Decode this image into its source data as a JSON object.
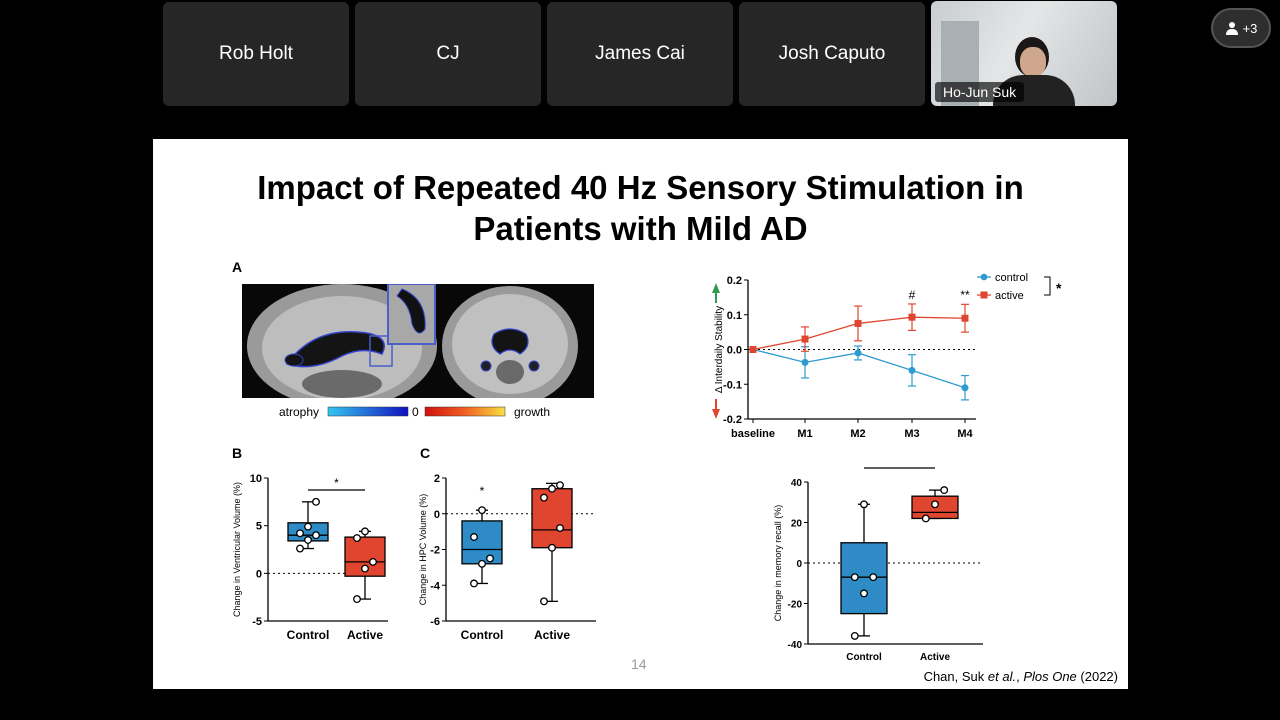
{
  "participants": [
    {
      "name": "Rob Holt"
    },
    {
      "name": "CJ"
    },
    {
      "name": "James Cai"
    },
    {
      "name": "Josh Caputo"
    }
  ],
  "video_participant": {
    "name": "Ho-Jun Suk"
  },
  "participants_button": {
    "label": "+3",
    "icon": "person-icon"
  },
  "slide": {
    "title_line1": "Impact of Repeated 40 Hz Sensory Stimulation in",
    "title_line2": "Patients with Mild AD",
    "page_number": "14",
    "citation_authors": "Chan, Suk ",
    "citation_etal": "et al.",
    "citation_sep": ", ",
    "citation_journal": "Plos One",
    "citation_year": " (2022)",
    "panel_labels": {
      "a": "A",
      "b": "B",
      "c": "C"
    },
    "colorbar": {
      "left": "atrophy",
      "mid": "0",
      "right": "growth"
    }
  },
  "chart_data": [
    {
      "id": "B",
      "type": "box",
      "ylabel": "Change in Ventricular Volume (%)",
      "ylim": [
        -5,
        10
      ],
      "yticks": [
        -5,
        0,
        5,
        10
      ],
      "categories": [
        "Control",
        "Active"
      ],
      "colors": [
        "#2e8bc5",
        "#e0452f"
      ],
      "boxes": [
        {
          "min": 2.6,
          "q1": 3.4,
          "median": 4.0,
          "q3": 5.3,
          "max": 7.5,
          "points": [
            2.6,
            3.5,
            4.0,
            4.2,
            4.9,
            7.5
          ]
        },
        {
          "min": -2.7,
          "q1": -0.3,
          "median": 1.2,
          "q3": 3.8,
          "max": 4.4,
          "points": [
            -2.7,
            0.5,
            1.2,
            3.7,
            4.4
          ]
        }
      ],
      "significance": "*"
    },
    {
      "id": "C",
      "type": "box",
      "ylabel": "Change in HPC Volume (%)",
      "ylim": [
        -6,
        2
      ],
      "yticks": [
        -6,
        -4,
        -2,
        0,
        2
      ],
      "categories": [
        "Control",
        "Active"
      ],
      "colors": [
        "#2e8bc5",
        "#e0452f"
      ],
      "boxes": [
        {
          "min": -3.9,
          "q1": -2.8,
          "median": -2.0,
          "q3": -0.4,
          "max": 0.2,
          "points": [
            -3.9,
            -2.8,
            -2.5,
            -1.3,
            0.2
          ]
        },
        {
          "min": -4.9,
          "q1": -1.9,
          "median": -0.9,
          "q3": 1.4,
          "max": 1.7,
          "points": [
            -4.9,
            -1.9,
            -0.8,
            0.9,
            1.4,
            1.6
          ]
        }
      ],
      "significance": "*"
    },
    {
      "id": "interdaily",
      "type": "line",
      "ylabel": "Δ Interdaily Stability",
      "ylim": [
        -0.2,
        0.2
      ],
      "yticks": [
        -0.2,
        -0.1,
        0.0,
        0.1,
        0.2
      ],
      "categories": [
        "baseline",
        "M1",
        "M2",
        "M3",
        "M4"
      ],
      "series": [
        {
          "name": "control",
          "color": "#2e9bd0",
          "values": [
            0.0,
            -0.037,
            -0.01,
            -0.06,
            -0.11
          ],
          "errors": [
            0,
            0.045,
            0.02,
            0.045,
            0.035
          ]
        },
        {
          "name": "active",
          "color": "#e0452f",
          "values": [
            0.0,
            0.03,
            0.075,
            0.093,
            0.09
          ],
          "errors": [
            0,
            0.035,
            0.05,
            0.038,
            0.04
          ]
        }
      ],
      "annotations": [
        {
          "category": "M3",
          "text": "#"
        },
        {
          "category": "M4",
          "text": "**"
        }
      ],
      "legend_significance": "*",
      "legend": "top-right"
    },
    {
      "id": "memory",
      "type": "box",
      "ylabel": "Change in memory recall (%)",
      "ylim": [
        -40,
        40
      ],
      "yticks": [
        -40,
        -20,
        0,
        20,
        40
      ],
      "categories": [
        "Control",
        "Active"
      ],
      "colors": [
        "#2e8bc5",
        "#e0452f"
      ],
      "boxes": [
        {
          "min": -36,
          "q1": -25,
          "median": -7,
          "q3": 10,
          "max": 29,
          "points": [
            -36,
            -15,
            -7,
            -7,
            29
          ]
        },
        {
          "min": 22,
          "q1": 22,
          "median": 25,
          "q3": 33,
          "max": 36,
          "points": [
            22,
            29,
            36
          ]
        }
      ],
      "significance": "*"
    }
  ]
}
